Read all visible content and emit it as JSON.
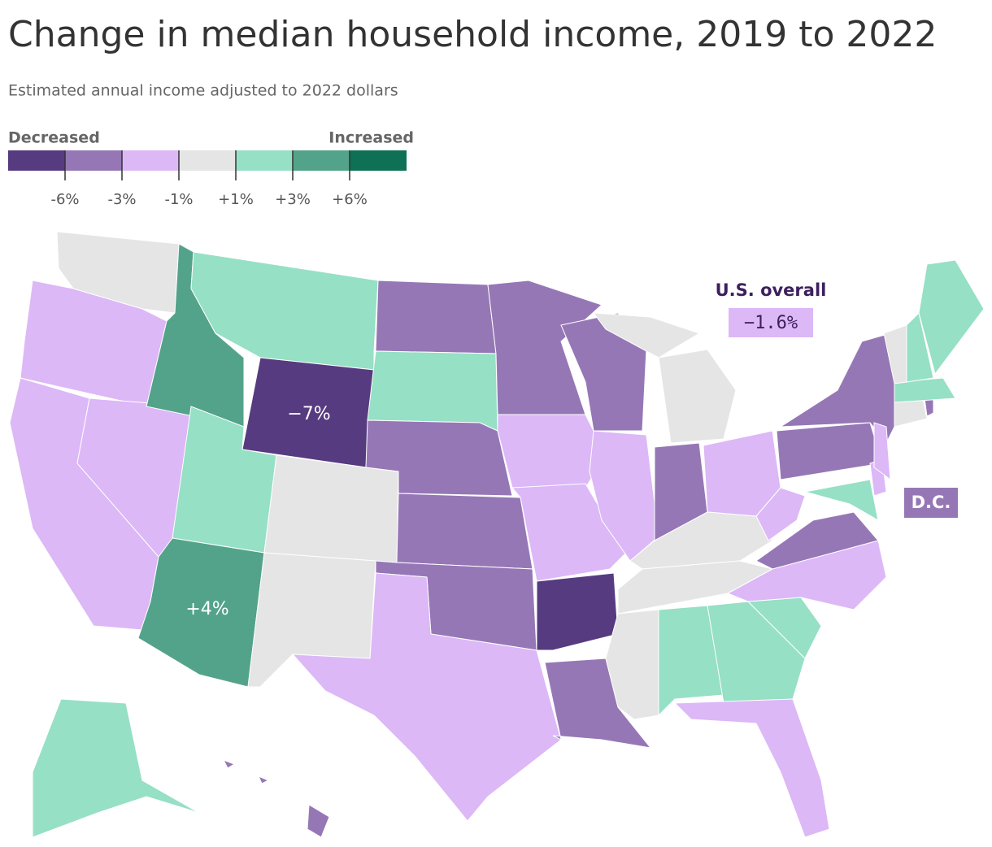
{
  "title": "Change in median household income, 2019 to 2022",
  "subtitle": "Estimated annual income adjusted to 2022 dollars",
  "legend": {
    "low_label": "Decreased",
    "high_label": "Increased",
    "colors": [
      "#573b80",
      "#9677b6",
      "#dcb8f7",
      "#e5e5e5",
      "#96e0c5",
      "#53a38a",
      "#0e7055"
    ],
    "ticks": [
      {
        "value": -6,
        "label": "-6%"
      },
      {
        "value": -3,
        "label": "-3%"
      },
      {
        "value": -1,
        "label": "-1%"
      },
      {
        "value": 1,
        "label": "+1%"
      },
      {
        "value": 3,
        "label": "+3%"
      },
      {
        "value": 6,
        "label": "+6%"
      }
    ]
  },
  "callouts": {
    "us_label": "U.S. overall",
    "us_value": {
      "value": -1.6,
      "label": "−1.6%"
    },
    "state_values": [
      {
        "value": -7,
        "label": "−7%"
      },
      {
        "value": 4,
        "label": "+4%"
      }
    ],
    "dc": "D.C."
  },
  "state_bins": [
    3,
    2,
    2,
    2,
    5,
    4,
    0,
    4,
    5,
    3,
    3,
    1,
    4,
    1,
    1,
    1,
    2,
    1,
    2,
    2,
    0,
    1,
    1,
    2,
    3,
    1,
    2,
    3,
    3,
    3,
    4,
    4,
    2,
    4,
    2,
    1,
    2,
    1,
    1,
    4,
    2,
    2,
    3,
    1,
    4,
    3,
    4,
    4,
    1
  ]
}
